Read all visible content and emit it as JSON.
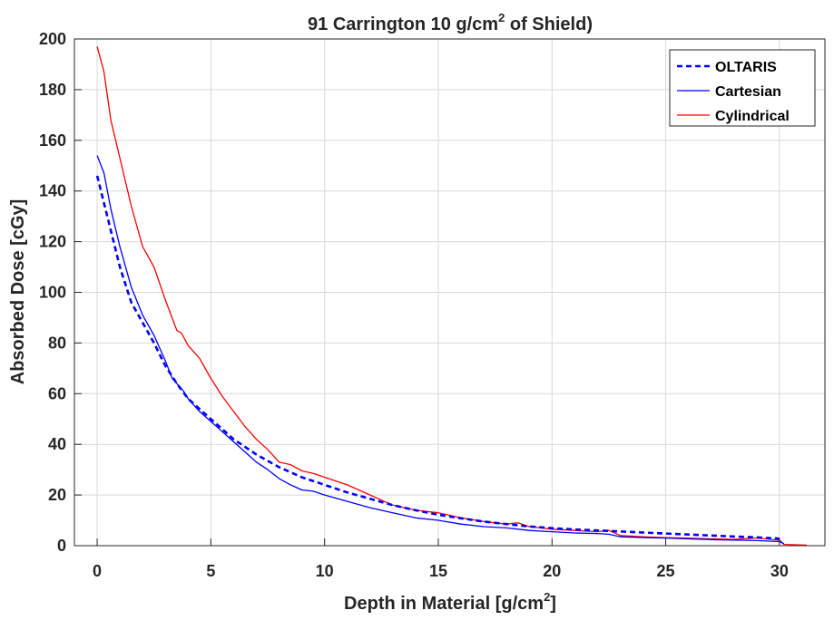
{
  "chart_data": {
    "type": "line",
    "title_main": "91 Carrington 10 g/cm",
    "title_sup": "2",
    "title_tail": " of Shield)",
    "xlabel_main": "Depth in Material [g/cm",
    "xlabel_sup": "2",
    "xlabel_tail": "]",
    "ylabel": "Absorbed Dose [cGy]",
    "xlim": [
      -1,
      32
    ],
    "ylim": [
      0,
      200
    ],
    "xticks": [
      0,
      5,
      10,
      15,
      20,
      25,
      30
    ],
    "yticks": [
      0,
      20,
      40,
      60,
      80,
      100,
      120,
      140,
      160,
      180,
      200
    ],
    "grid": true,
    "legend_position": "top-right",
    "series": [
      {
        "name": "OLTARIS",
        "color": "#0000ff",
        "style": "dashed",
        "points": [
          [
            0,
            146
          ],
          [
            0.5,
            128
          ],
          [
            1,
            110
          ],
          [
            1.5,
            96
          ],
          [
            2,
            88
          ],
          [
            2.5,
            80
          ],
          [
            3,
            71
          ],
          [
            3.5,
            64
          ],
          [
            4,
            58
          ],
          [
            4.5,
            54
          ],
          [
            5,
            50
          ],
          [
            5.5,
            46
          ],
          [
            6,
            42
          ],
          [
            7,
            36
          ],
          [
            8,
            31
          ],
          [
            9,
            27
          ],
          [
            10,
            24
          ],
          [
            11,
            21
          ],
          [
            12,
            18.5
          ],
          [
            13,
            16
          ],
          [
            14,
            14
          ],
          [
            15,
            12.2
          ],
          [
            16,
            10.8
          ],
          [
            17,
            9.5
          ],
          [
            18,
            8.5
          ],
          [
            19,
            7.6
          ],
          [
            20,
            6.9
          ],
          [
            21,
            6.4
          ],
          [
            22,
            6.0
          ],
          [
            23,
            5.6
          ],
          [
            24,
            5.2
          ],
          [
            25,
            4.8
          ],
          [
            26,
            4.4
          ],
          [
            27,
            4.0
          ],
          [
            28,
            3.6
          ],
          [
            29,
            3.3
          ],
          [
            30,
            2.8
          ]
        ]
      },
      {
        "name": "Cartesian",
        "color": "#0000ff",
        "style": "solid",
        "points": [
          [
            0,
            154
          ],
          [
            0.3,
            147
          ],
          [
            0.6,
            133
          ],
          [
            1,
            118
          ],
          [
            1.5,
            102
          ],
          [
            2,
            91
          ],
          [
            2.5,
            83
          ],
          [
            3,
            73
          ],
          [
            3.3,
            66
          ],
          [
            3.5,
            64
          ],
          [
            3.8,
            61
          ],
          [
            4,
            58
          ],
          [
            4.5,
            53
          ],
          [
            5,
            49
          ],
          [
            5.5,
            45
          ],
          [
            6,
            41
          ],
          [
            6.5,
            37
          ],
          [
            7,
            33
          ],
          [
            7.5,
            30
          ],
          [
            8,
            26.5
          ],
          [
            8.5,
            24
          ],
          [
            9,
            22
          ],
          [
            9.5,
            21.5
          ],
          [
            10,
            20
          ],
          [
            11,
            17.5
          ],
          [
            12,
            15
          ],
          [
            13,
            13
          ],
          [
            14,
            11
          ],
          [
            15,
            10
          ],
          [
            16,
            8.5
          ],
          [
            17,
            7.5
          ],
          [
            18,
            7
          ],
          [
            19,
            6
          ],
          [
            20,
            5.5
          ],
          [
            21,
            5
          ],
          [
            22,
            4.8
          ],
          [
            22.5,
            4.5
          ],
          [
            23,
            3.5
          ],
          [
            24,
            3.2
          ],
          [
            25,
            3
          ],
          [
            26,
            2.7
          ],
          [
            27,
            2.4
          ],
          [
            28,
            2.2
          ],
          [
            29,
            2
          ],
          [
            30,
            1.6
          ],
          [
            30.2,
            0.8
          ]
        ]
      },
      {
        "name": "Cylindrical",
        "color": "#ff0000",
        "style": "solid",
        "points": [
          [
            0,
            197
          ],
          [
            0.3,
            187
          ],
          [
            0.6,
            168
          ],
          [
            1,
            153
          ],
          [
            1.5,
            134
          ],
          [
            2,
            118
          ],
          [
            2.5,
            110
          ],
          [
            3,
            97
          ],
          [
            3.5,
            85
          ],
          [
            3.7,
            84
          ],
          [
            4,
            79
          ],
          [
            4.5,
            74
          ],
          [
            5,
            66
          ],
          [
            5.5,
            59
          ],
          [
            6,
            53
          ],
          [
            6.5,
            47
          ],
          [
            7,
            42
          ],
          [
            7.5,
            38
          ],
          [
            8,
            33
          ],
          [
            8.5,
            32
          ],
          [
            9,
            29.5
          ],
          [
            9.5,
            28.5
          ],
          [
            10,
            27
          ],
          [
            11,
            24
          ],
          [
            12,
            20
          ],
          [
            12.5,
            18
          ],
          [
            13,
            16
          ],
          [
            14,
            14
          ],
          [
            15,
            13
          ],
          [
            16,
            11
          ],
          [
            17,
            9.5
          ],
          [
            18,
            8.5
          ],
          [
            18.5,
            9
          ],
          [
            19,
            7.5
          ],
          [
            20,
            6.5
          ],
          [
            21,
            6
          ],
          [
            22,
            5.5
          ],
          [
            22.5,
            6
          ],
          [
            23,
            4
          ],
          [
            24,
            3.5
          ],
          [
            25,
            3.2
          ],
          [
            26,
            3
          ],
          [
            27,
            2.7
          ],
          [
            28,
            2.5
          ],
          [
            29,
            3
          ],
          [
            30,
            2.2
          ],
          [
            30.2,
            0.5
          ],
          [
            31.2,
            0.2
          ]
        ]
      }
    ]
  }
}
